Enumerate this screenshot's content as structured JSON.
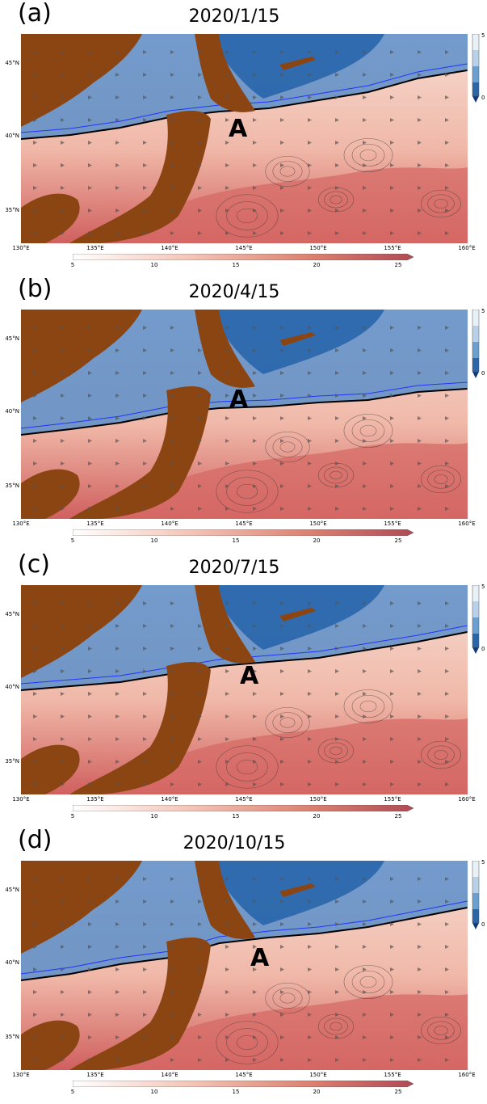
{
  "panels": [
    {
      "label": "(a)",
      "title": "2020/1/15",
      "marker": "A"
    },
    {
      "label": "(b)",
      "title": "2020/4/15",
      "marker": "A"
    },
    {
      "label": "(c)",
      "title": "2020/7/15",
      "marker": "A"
    },
    {
      "label": "(d)",
      "title": "2020/10/15",
      "marker": "A"
    }
  ],
  "lat_ticks": [
    "45°N",
    "40°N",
    "35°N"
  ],
  "lon_ticks": [
    "130°E",
    "135°E",
    "140°E",
    "145°E",
    "150°E",
    "155°E",
    "160°E"
  ],
  "colorbar_h_ticks": [
    "5",
    "10",
    "15",
    "20",
    "25"
  ],
  "colorbar_v_ticks": [
    "5",
    "0"
  ],
  "colors": {
    "land": "#8B4513",
    "warm": "#d0605f",
    "cold": "#1f5fa8",
    "contour": "#000000",
    "front": "#2233ff"
  }
}
